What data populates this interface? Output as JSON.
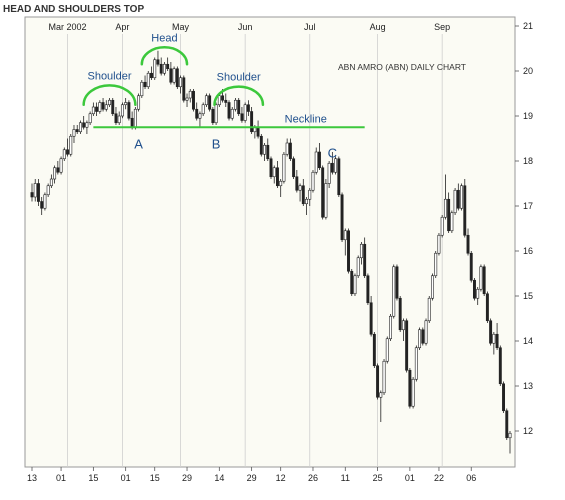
{
  "chart_data": {
    "type": "candlestick",
    "title": "HEAD AND SHOULDERS TOP",
    "subtitle": "ABN AMRO (ABN) DAILY CHART",
    "ylim": [
      11.2,
      21.2
    ],
    "y_ticks": [
      12,
      13,
      14,
      15,
      16,
      17,
      18,
      19,
      20,
      21
    ],
    "month_labels": [
      {
        "label": "Mar 2002",
        "x": 11
      },
      {
        "label": "Apr",
        "x": 28
      },
      {
        "label": "May",
        "x": 46
      },
      {
        "label": "Jun",
        "x": 66
      },
      {
        "label": "Jul",
        "x": 86
      },
      {
        "label": "Aug",
        "x": 107
      },
      {
        "label": "Sep",
        "x": 127
      }
    ],
    "day_labels": [
      {
        "label": "13",
        "x": 0
      },
      {
        "label": "01",
        "x": 9
      },
      {
        "label": "15",
        "x": 19
      },
      {
        "label": "01",
        "x": 29
      },
      {
        "label": "15",
        "x": 38
      },
      {
        "label": "29",
        "x": 48
      },
      {
        "label": "14",
        "x": 58
      },
      {
        "label": "29",
        "x": 68
      },
      {
        "label": "12",
        "x": 77
      },
      {
        "label": "26",
        "x": 87
      },
      {
        "label": "11",
        "x": 97
      },
      {
        "label": "25",
        "x": 107
      },
      {
        "label": "01",
        "x": 117
      },
      {
        "label": "22",
        "x": 126
      },
      {
        "label": "06",
        "x": 136
      }
    ],
    "neckline": {
      "label": "Neckline",
      "value": 18.75,
      "x_start": 19,
      "x_end": 103
    },
    "arcs": [
      {
        "label": "Shoulder",
        "x_center": 24,
        "base": 19.25,
        "x_half_width": 8
      },
      {
        "label": "Head",
        "x_center": 41,
        "base": 20.15,
        "x_half_width": 7
      },
      {
        "label": "Shoulder",
        "x_center": 64,
        "base": 19.25,
        "x_half_width": 7.5
      }
    ],
    "points": [
      {
        "label": "A",
        "x": 33,
        "y": 18.5
      },
      {
        "label": "B",
        "x": 57,
        "y": 18.5
      },
      {
        "label": "C",
        "x": 93,
        "y": 18.3
      }
    ],
    "ohlc": [
      [
        17.3,
        17.5,
        17.1,
        17.2
      ],
      [
        17.2,
        17.6,
        17.1,
        17.5
      ],
      [
        17.5,
        17.6,
        17.0,
        17.1
      ],
      [
        17.1,
        17.2,
        16.8,
        16.95
      ],
      [
        16.95,
        17.3,
        16.9,
        17.25
      ],
      [
        17.25,
        17.5,
        17.2,
        17.45
      ],
      [
        17.45,
        17.7,
        17.4,
        17.6
      ],
      [
        17.6,
        17.9,
        17.5,
        17.85
      ],
      [
        17.85,
        18.0,
        17.7,
        17.75
      ],
      [
        17.75,
        18.1,
        17.7,
        18.05
      ],
      [
        18.05,
        18.3,
        18.0,
        18.25
      ],
      [
        18.25,
        18.5,
        18.1,
        18.15
      ],
      [
        18.15,
        18.6,
        18.1,
        18.55
      ],
      [
        18.55,
        18.8,
        18.4,
        18.7
      ],
      [
        18.7,
        18.8,
        18.6,
        18.65
      ],
      [
        18.65,
        18.9,
        18.6,
        18.85
      ],
      [
        18.85,
        19.0,
        18.7,
        18.75
      ],
      [
        18.75,
        18.9,
        18.6,
        18.85
      ],
      [
        18.85,
        19.1,
        18.8,
        19.05
      ],
      [
        19.05,
        19.3,
        19.0,
        19.2
      ],
      [
        19.2,
        19.3,
        19.0,
        19.1
      ],
      [
        19.1,
        19.35,
        19.05,
        19.3
      ],
      [
        19.3,
        19.4,
        19.1,
        19.15
      ],
      [
        19.15,
        19.35,
        19.1,
        19.25
      ],
      [
        19.25,
        19.4,
        19.2,
        19.35
      ],
      [
        19.35,
        19.4,
        19.0,
        19.05
      ],
      [
        19.05,
        19.2,
        18.8,
        18.85
      ],
      [
        18.85,
        19.1,
        18.8,
        19.0
      ],
      [
        19.0,
        19.3,
        18.95,
        19.25
      ],
      [
        19.25,
        19.4,
        19.15,
        19.3
      ],
      [
        19.3,
        19.35,
        18.9,
        18.95
      ],
      [
        18.95,
        19.1,
        18.7,
        18.75
      ],
      [
        18.75,
        19.2,
        18.7,
        19.15
      ],
      [
        19.15,
        19.5,
        19.1,
        19.45
      ],
      [
        19.45,
        19.8,
        19.4,
        19.75
      ],
      [
        19.75,
        19.9,
        19.6,
        19.65
      ],
      [
        19.65,
        20.0,
        19.6,
        19.95
      ],
      [
        19.95,
        20.1,
        19.8,
        19.85
      ],
      [
        19.85,
        20.3,
        19.8,
        20.25
      ],
      [
        20.25,
        20.45,
        20.1,
        20.15
      ],
      [
        20.15,
        20.3,
        19.9,
        19.95
      ],
      [
        19.95,
        20.2,
        19.9,
        20.15
      ],
      [
        20.15,
        20.3,
        20.0,
        20.05
      ],
      [
        20.05,
        20.2,
        19.7,
        19.75
      ],
      [
        19.75,
        20.1,
        19.7,
        20.05
      ],
      [
        20.05,
        20.1,
        19.6,
        19.65
      ],
      [
        19.65,
        19.9,
        19.5,
        19.85
      ],
      [
        19.85,
        19.9,
        19.3,
        19.35
      ],
      [
        19.35,
        19.5,
        19.2,
        19.4
      ],
      [
        19.4,
        19.6,
        19.3,
        19.55
      ],
      [
        19.55,
        19.6,
        19.1,
        19.15
      ],
      [
        19.15,
        19.3,
        18.9,
        18.95
      ],
      [
        18.95,
        19.1,
        18.75,
        19.05
      ],
      [
        19.05,
        19.3,
        19.0,
        19.25
      ],
      [
        19.25,
        19.5,
        19.2,
        19.45
      ],
      [
        19.45,
        19.5,
        19.1,
        19.15
      ],
      [
        19.15,
        19.2,
        18.8,
        18.85
      ],
      [
        18.85,
        19.3,
        18.8,
        19.25
      ],
      [
        19.25,
        19.5,
        19.2,
        19.45
      ],
      [
        19.45,
        19.6,
        19.3,
        19.35
      ],
      [
        19.35,
        19.5,
        19.2,
        19.3
      ],
      [
        19.3,
        19.35,
        18.9,
        18.95
      ],
      [
        18.95,
        19.2,
        18.9,
        19.15
      ],
      [
        19.15,
        19.4,
        19.1,
        19.35
      ],
      [
        19.35,
        19.4,
        19.0,
        19.05
      ],
      [
        19.05,
        19.2,
        18.85,
        18.9
      ],
      [
        18.9,
        19.3,
        18.85,
        19.25
      ],
      [
        19.25,
        19.35,
        19.0,
        19.1
      ],
      [
        19.1,
        19.2,
        18.6,
        18.65
      ],
      [
        18.65,
        18.8,
        18.5,
        18.75
      ],
      [
        18.75,
        18.9,
        18.5,
        18.55
      ],
      [
        18.55,
        18.6,
        18.1,
        18.15
      ],
      [
        18.15,
        18.4,
        18.0,
        18.35
      ],
      [
        18.35,
        18.5,
        18.0,
        18.05
      ],
      [
        18.05,
        18.1,
        17.6,
        17.65
      ],
      [
        17.65,
        17.9,
        17.5,
        17.85
      ],
      [
        17.85,
        18.0,
        17.4,
        17.45
      ],
      [
        17.45,
        17.6,
        17.2,
        17.55
      ],
      [
        17.55,
        18.2,
        17.5,
        18.15
      ],
      [
        18.15,
        18.5,
        18.1,
        18.4
      ],
      [
        18.4,
        18.5,
        18.0,
        18.05
      ],
      [
        18.05,
        18.1,
        17.6,
        17.65
      ],
      [
        17.65,
        17.8,
        17.3,
        17.35
      ],
      [
        17.35,
        17.5,
        17.1,
        17.45
      ],
      [
        17.45,
        17.6,
        17.0,
        17.05
      ],
      [
        17.05,
        17.2,
        16.8,
        17.15
      ],
      [
        17.15,
        17.4,
        17.0,
        17.35
      ],
      [
        17.35,
        17.8,
        17.3,
        17.75
      ],
      [
        17.75,
        18.3,
        17.7,
        18.2
      ],
      [
        18.2,
        18.4,
        17.8,
        17.85
      ],
      [
        17.85,
        17.9,
        16.7,
        16.75
      ],
      [
        16.75,
        17.6,
        16.7,
        17.5
      ],
      [
        17.5,
        18.0,
        17.4,
        17.95
      ],
      [
        17.95,
        18.2,
        17.7,
        17.75
      ],
      [
        17.75,
        18.1,
        17.7,
        18.05
      ],
      [
        18.05,
        18.1,
        17.2,
        17.25
      ],
      [
        17.25,
        17.3,
        16.2,
        16.25
      ],
      [
        16.25,
        16.5,
        15.9,
        16.45
      ],
      [
        16.45,
        16.5,
        15.5,
        15.55
      ],
      [
        15.55,
        15.6,
        15.0,
        15.05
      ],
      [
        15.05,
        15.5,
        15.0,
        15.45
      ],
      [
        15.45,
        15.9,
        15.4,
        15.85
      ],
      [
        15.85,
        16.2,
        15.7,
        16.15
      ],
      [
        16.15,
        16.3,
        15.4,
        15.45
      ],
      [
        15.45,
        15.5,
        14.8,
        14.85
      ],
      [
        14.85,
        15.0,
        14.1,
        14.15
      ],
      [
        14.15,
        14.2,
        13.4,
        13.45
      ],
      [
        13.45,
        13.5,
        12.7,
        12.75
      ],
      [
        12.75,
        12.9,
        12.2,
        12.85
      ],
      [
        12.85,
        13.6,
        12.8,
        13.55
      ],
      [
        13.55,
        14.1,
        13.5,
        14.05
      ],
      [
        14.05,
        14.6,
        14.0,
        14.55
      ],
      [
        14.55,
        15.7,
        14.5,
        15.65
      ],
      [
        15.65,
        15.7,
        14.9,
        14.95
      ],
      [
        14.95,
        15.0,
        14.2,
        14.25
      ],
      [
        14.25,
        14.5,
        14.0,
        14.45
      ],
      [
        14.45,
        14.5,
        13.3,
        13.35
      ],
      [
        13.35,
        13.4,
        12.5,
        12.55
      ],
      [
        12.55,
        13.2,
        12.5,
        13.15
      ],
      [
        13.15,
        13.9,
        13.1,
        13.85
      ],
      [
        13.85,
        14.3,
        13.8,
        14.25
      ],
      [
        14.25,
        14.3,
        13.9,
        13.95
      ],
      [
        13.95,
        14.5,
        13.9,
        14.45
      ],
      [
        14.45,
        15.0,
        14.4,
        14.95
      ],
      [
        14.95,
        15.5,
        14.9,
        15.45
      ],
      [
        15.45,
        16.0,
        15.4,
        15.95
      ],
      [
        15.95,
        16.4,
        15.9,
        16.35
      ],
      [
        16.35,
        16.8,
        16.3,
        16.75
      ],
      [
        16.75,
        17.7,
        16.7,
        17.15
      ],
      [
        17.15,
        17.3,
        16.4,
        16.45
      ],
      [
        16.45,
        16.9,
        16.4,
        16.85
      ],
      [
        16.85,
        17.4,
        16.8,
        17.35
      ],
      [
        17.35,
        17.5,
        16.9,
        16.95
      ],
      [
        16.95,
        17.5,
        16.9,
        17.45
      ],
      [
        17.45,
        17.6,
        16.3,
        16.35
      ],
      [
        16.35,
        16.5,
        15.9,
        15.95
      ],
      [
        15.95,
        16.0,
        15.3,
        15.35
      ],
      [
        15.35,
        15.4,
        14.9,
        14.95
      ],
      [
        14.95,
        15.2,
        14.8,
        15.15
      ],
      [
        15.15,
        15.7,
        15.1,
        15.65
      ],
      [
        15.65,
        15.7,
        15.0,
        15.05
      ],
      [
        15.05,
        15.1,
        14.4,
        14.45
      ],
      [
        14.45,
        14.5,
        13.9,
        13.95
      ],
      [
        13.95,
        14.2,
        13.7,
        14.15
      ],
      [
        14.15,
        14.4,
        13.8,
        13.85
      ],
      [
        13.85,
        13.9,
        13.0,
        13.05
      ],
      [
        13.05,
        13.1,
        12.4,
        12.45
      ],
      [
        12.45,
        12.5,
        11.8,
        11.85
      ],
      [
        11.85,
        12.0,
        11.5,
        11.95
      ]
    ]
  }
}
